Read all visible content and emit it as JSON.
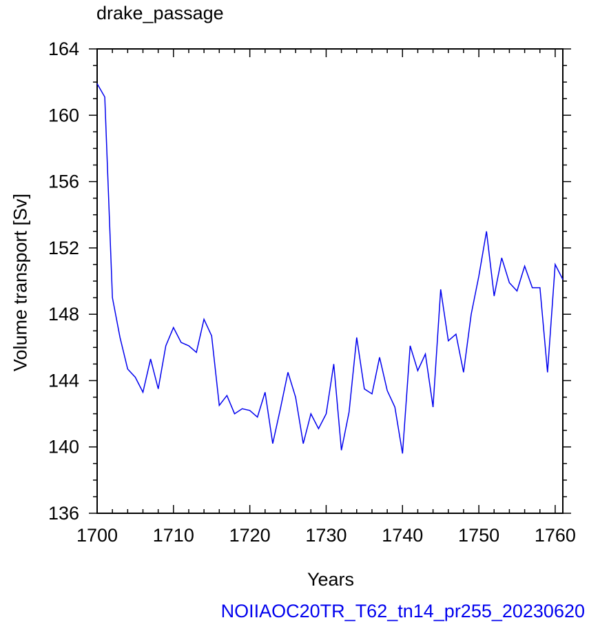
{
  "chart_data": {
    "type": "line",
    "title": "drake_passage",
    "xlabel": "Years",
    "ylabel": "Volume transport [Sv]",
    "footer": "NOIIAOC20TR_T62_tn14_pr255_20230620",
    "xlim": [
      1700,
      1761
    ],
    "ylim": [
      136,
      164
    ],
    "xticks": [
      "1700",
      "1710",
      "1720",
      "1730",
      "1740",
      "1750",
      "1760"
    ],
    "yticks": [
      "136",
      "140",
      "144",
      "148",
      "152",
      "156",
      "160",
      "164"
    ],
    "grid": false,
    "line_color": "#0000ee",
    "series": [
      {
        "x": [
          1700,
          1701,
          1702,
          1703,
          1704,
          1705,
          1706,
          1707,
          1708,
          1709,
          1710,
          1711,
          1712,
          1713,
          1714,
          1715,
          1716,
          1717,
          1718,
          1719,
          1720,
          1721,
          1722,
          1723,
          1724,
          1725,
          1726,
          1727,
          1728,
          1729,
          1730,
          1731,
          1732,
          1733,
          1734,
          1735,
          1736,
          1737,
          1738,
          1739,
          1740,
          1741,
          1742,
          1743,
          1744,
          1745,
          1746,
          1747,
          1748,
          1749,
          1750,
          1751,
          1752,
          1753,
          1754,
          1755,
          1756,
          1757,
          1758,
          1759,
          1760,
          1761
        ],
        "values": [
          161.9,
          161.1,
          149.0,
          146.6,
          144.7,
          144.2,
          143.3,
          145.3,
          143.5,
          146.1,
          147.2,
          146.3,
          146.1,
          145.7,
          147.7,
          146.7,
          142.5,
          143.1,
          142.0,
          142.3,
          142.2,
          141.8,
          143.3,
          140.2,
          142.3,
          144.5,
          143.0,
          140.2,
          142.0,
          141.1,
          142.0,
          145.0,
          139.8,
          142.1,
          146.6,
          143.5,
          143.2,
          145.4,
          143.4,
          142.4,
          139.6,
          146.1,
          144.6,
          145.6,
          142.4,
          149.5,
          146.4,
          146.8,
          144.5,
          148.0,
          150.3,
          153.0,
          149.1,
          151.4,
          149.9,
          149.4,
          150.9,
          149.6,
          149.6,
          144.5,
          151.0,
          150.1
        ]
      }
    ]
  }
}
